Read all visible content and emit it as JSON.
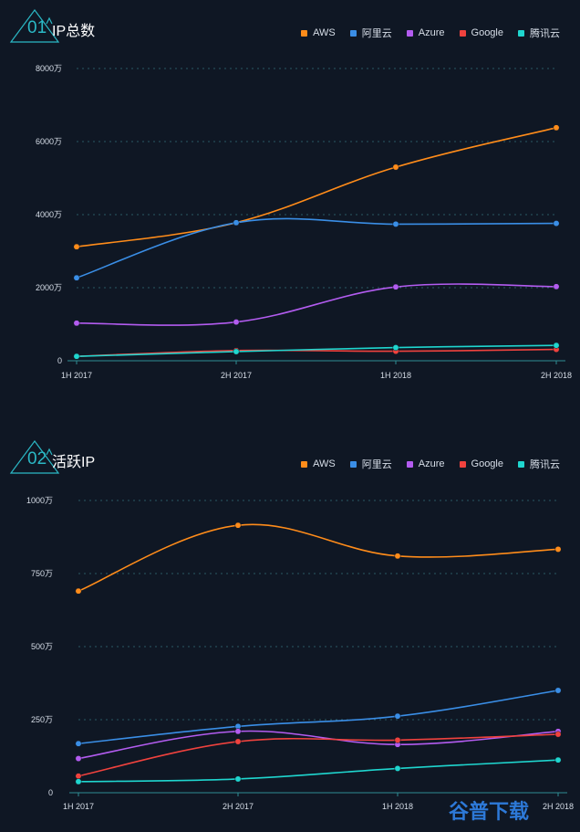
{
  "panels": [
    {
      "number": "01",
      "title": "IP总数",
      "legend": [
        "AWS",
        "阿里云",
        "Azure",
        "Google",
        "腾讯云"
      ]
    },
    {
      "number": "02",
      "title": "活跃IP",
      "legend": [
        "AWS",
        "阿里云",
        "Azure",
        "Google",
        "腾讯云"
      ]
    }
  ],
  "watermark": "谷普下载",
  "colors": {
    "AWS": "#ff8c1a",
    "阿里云": "#3a8ee6",
    "Azure": "#b35cf0",
    "Google": "#f0423e",
    "腾讯云": "#1fd6cf"
  },
  "chart_data": [
    {
      "type": "line",
      "title": "IP总数",
      "categories": [
        "1H 2017",
        "2H 2017",
        "1H 2018",
        "2H 2018"
      ],
      "ylim": [
        0,
        8000
      ],
      "yticks": [
        0,
        2000,
        4000,
        6000,
        8000
      ],
      "ytick_labels": [
        "0",
        "2000万",
        "4000万",
        "6000万",
        "8000万"
      ],
      "grid": true,
      "legend_position": "top-right",
      "series": [
        {
          "name": "AWS",
          "values": [
            3120,
            3780,
            5300,
            6380
          ]
        },
        {
          "name": "阿里云",
          "values": [
            2270,
            3780,
            3740,
            3760
          ]
        },
        {
          "name": "Azure",
          "values": [
            1030,
            1060,
            2020,
            2030
          ]
        },
        {
          "name": "Google",
          "values": [
            120,
            280,
            260,
            310
          ]
        },
        {
          "name": "腾讯云",
          "values": [
            120,
            250,
            360,
            420
          ]
        }
      ]
    },
    {
      "type": "line",
      "title": "活跃IP",
      "categories": [
        "1H 2017",
        "2H 2017",
        "1H 2018",
        "2H 2018"
      ],
      "ylim": [
        0,
        1000
      ],
      "yticks": [
        0,
        250,
        500,
        750,
        1000
      ],
      "ytick_labels": [
        "0",
        "250万",
        "500万",
        "750万",
        "1000万"
      ],
      "grid": true,
      "legend_position": "top-right",
      "series": [
        {
          "name": "AWS",
          "values": [
            690,
            915,
            810,
            833
          ]
        },
        {
          "name": "阿里云",
          "values": [
            168,
            227,
            262,
            350
          ]
        },
        {
          "name": "Azure",
          "values": [
            117,
            210,
            165,
            210
          ]
        },
        {
          "name": "Google",
          "values": [
            57,
            175,
            180,
            200
          ]
        },
        {
          "name": "腾讯云",
          "values": [
            38,
            47,
            83,
            112
          ]
        }
      ]
    }
  ]
}
